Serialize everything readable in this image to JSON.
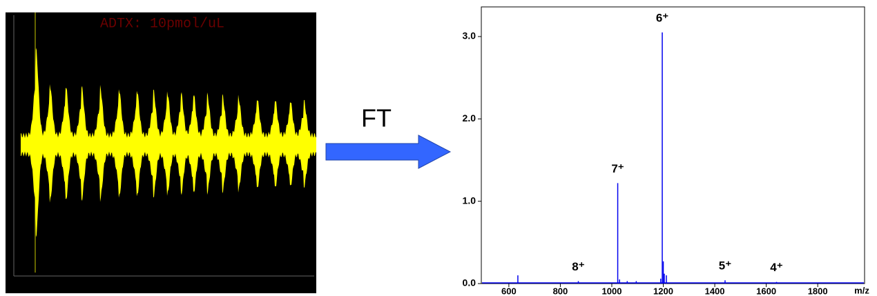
{
  "transient": {
    "title": "ADTX: 10pmol/uL"
  },
  "arrow_label": "FT",
  "chart_data": {
    "type": "stem",
    "xlabel": "m/z",
    "xlim": [
      493,
      1982
    ],
    "xticks": [
      600,
      800,
      1000,
      1200,
      1400,
      1600,
      1800
    ],
    "ylim": [
      0,
      3.36
    ],
    "yticks": [
      {
        "value": 0,
        "label": "0.0"
      },
      {
        "value": 1,
        "label": "1.0"
      },
      {
        "value": 2,
        "label": "2.0"
      },
      {
        "value": 3,
        "label": "3.0"
      }
    ],
    "series": [
      {
        "color": "#0000ee",
        "x": [
          635,
          870,
          1023,
          1030,
          1060,
          1095,
          1190,
          1196,
          1200,
          1204,
          1212,
          1440,
          1640
        ],
        "values": [
          0.1,
          0.03,
          1.22,
          0.05,
          0.03,
          0.03,
          0.06,
          3.05,
          0.27,
          0.12,
          0.1,
          0.04,
          0.02
        ]
      }
    ],
    "annotations": [
      {
        "x": 870,
        "text": "8⁺"
      },
      {
        "x": 1023,
        "text": "7⁺"
      },
      {
        "x": 1196,
        "text": "6⁺"
      },
      {
        "x": 1440,
        "text": "5⁺"
      },
      {
        "x": 1640,
        "text": "4⁺"
      }
    ]
  }
}
